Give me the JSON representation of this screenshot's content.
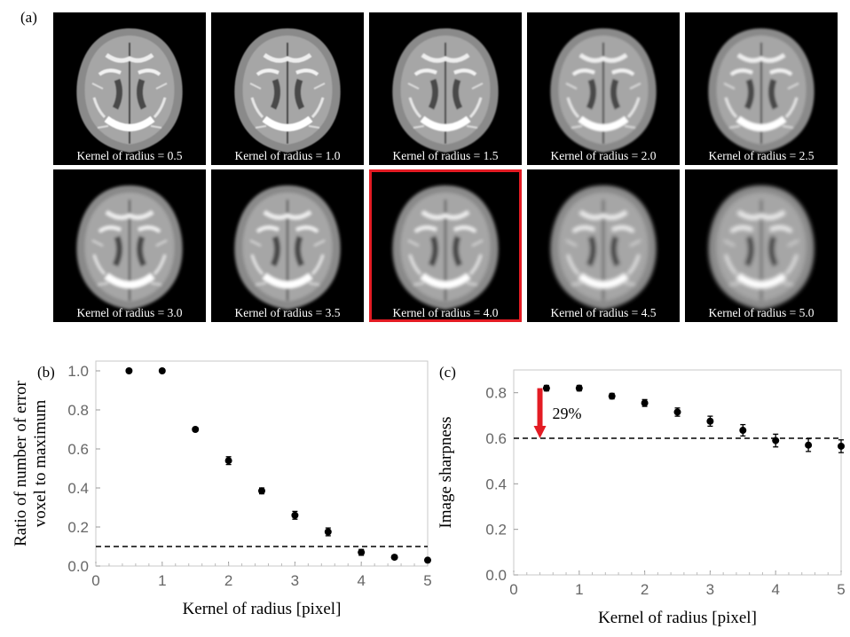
{
  "panel_a": {
    "label": "(a)",
    "tiles": [
      {
        "caption": "Kernel of radius  = 0.5",
        "highlighted": false
      },
      {
        "caption": "Kernel of radius  = 1.0",
        "highlighted": false
      },
      {
        "caption": "Kernel of radius  = 1.5",
        "highlighted": false
      },
      {
        "caption": "Kernel of radius  = 2.0",
        "highlighted": false
      },
      {
        "caption": "Kernel of radius  = 2.5",
        "highlighted": false
      },
      {
        "caption": "Kernel of radius  = 3.0",
        "highlighted": false
      },
      {
        "caption": "Kernel of radius  = 3.5",
        "highlighted": false
      },
      {
        "caption": "Kernel of radius  = 4.0",
        "highlighted": true
      },
      {
        "caption": "Kernel of radius  = 4.5",
        "highlighted": false
      },
      {
        "caption": "Kernel of radius  = 5.0",
        "highlighted": false
      }
    ],
    "highlight_color": "#e31b23"
  },
  "chart_data": [
    {
      "panel": "(b)",
      "type": "scatter",
      "xlabel": "Kernel of radius [pixel]",
      "ylabel": [
        "Ratio of number of error",
        "voxel to maximum"
      ],
      "xlim": [
        0,
        5
      ],
      "ylim": [
        0,
        1.05
      ],
      "xticks": [
        0,
        1,
        2,
        3,
        4,
        5
      ],
      "yticks": [
        "0.0",
        "0.2",
        "0.4",
        "0.6",
        "0.8",
        "1.0"
      ],
      "x": [
        0.5,
        1.0,
        1.5,
        2.0,
        2.5,
        3.0,
        3.5,
        4.0,
        4.5,
        5.0
      ],
      "y": [
        1.0,
        1.0,
        0.7,
        0.54,
        0.385,
        0.26,
        0.175,
        0.07,
        0.045,
        0.03
      ],
      "yerr": [
        0,
        0,
        0.01,
        0.02,
        0.015,
        0.02,
        0.02,
        0.015,
        0.01,
        0.01
      ],
      "reference_line": 0.1,
      "grid": false
    },
    {
      "panel": "(c)",
      "type": "scatter",
      "xlabel": "Kernel of radius [pixel]",
      "ylabel": [
        "Image sharpness"
      ],
      "xlim": [
        0,
        5
      ],
      "ylim": [
        0,
        0.9
      ],
      "xticks": [
        0,
        1,
        2,
        3,
        4,
        5
      ],
      "yticks": [
        "0.0",
        "0.2",
        "0.4",
        "0.6",
        "0.8"
      ],
      "x": [
        0.5,
        1.0,
        1.5,
        2.0,
        2.5,
        3.0,
        3.5,
        4.0,
        4.5,
        5.0
      ],
      "y": [
        0.82,
        0.82,
        0.785,
        0.755,
        0.715,
        0.675,
        0.635,
        0.59,
        0.57,
        0.565
      ],
      "yerr": [
        0.012,
        0.012,
        0.012,
        0.015,
        0.018,
        0.022,
        0.025,
        0.028,
        0.028,
        0.028
      ],
      "reference_line": 0.6,
      "annotation": {
        "text": "29%",
        "arrow_x": 0.4,
        "arrow_from": 0.82,
        "arrow_to": 0.6,
        "color": "#e31b23"
      },
      "grid": false
    }
  ]
}
